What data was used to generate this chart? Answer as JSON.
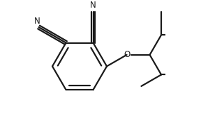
{
  "bg_color": "#ffffff",
  "line_color": "#1a1a1a",
  "line_width": 1.6,
  "figsize": [
    2.88,
    1.74
  ],
  "dpi": 100,
  "font_size": 8.5,
  "label_N": "N",
  "label_O": "O"
}
